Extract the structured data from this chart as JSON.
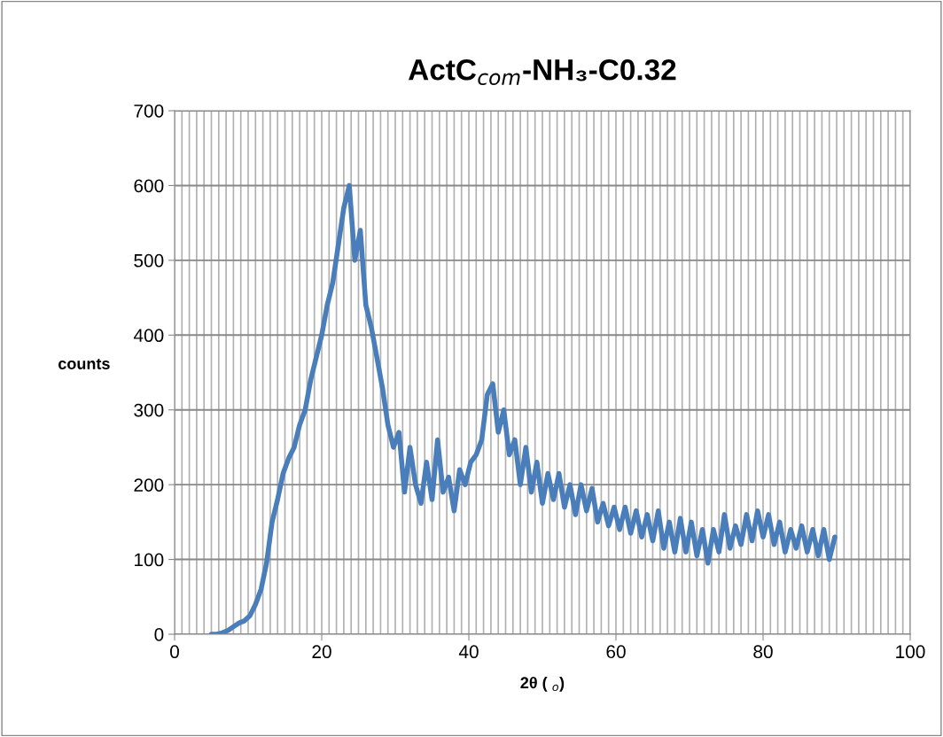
{
  "chart_data": {
    "type": "line",
    "title": "ActC$_{com}$-NH₃-C0.32",
    "xlabel": "2θ ( $_{o}$)",
    "ylabel": "counts",
    "xlim": [
      0,
      100
    ],
    "xticks": [
      0,
      20,
      40,
      60,
      80,
      100
    ],
    "ylim": [
      0,
      700
    ],
    "yticks": [
      0,
      100,
      200,
      300,
      400,
      500,
      600,
      700
    ],
    "grid": true,
    "legend": false,
    "series": [
      {
        "color": "#4a7ebb",
        "x": [
          5,
          5.75,
          6.5,
          7.25,
          8,
          8.75,
          9.5,
          10.25,
          11,
          11.75,
          12.5,
          13.25,
          14,
          14.75,
          15.5,
          16.25,
          17,
          17.75,
          18.5,
          19.25,
          20,
          20.75,
          21.5,
          22.25,
          23,
          23.75,
          24.5,
          25.25,
          26,
          26.75,
          27.5,
          28.25,
          29,
          29.75,
          30.5,
          31.25,
          32,
          32.75,
          33.5,
          34.25,
          35,
          35.75,
          36.5,
          37.25,
          38,
          38.75,
          39.5,
          40.25,
          41,
          41.75,
          42.5,
          43.25,
          44,
          44.75,
          45.5,
          46.25,
          47,
          47.75,
          48.5,
          49.25,
          50,
          50.75,
          51.5,
          52.25,
          53,
          53.75,
          54.5,
          55.25,
          56,
          56.75,
          57.5,
          58.25,
          59,
          59.75,
          60.5,
          61.25,
          62,
          62.75,
          63.5,
          64.25,
          65,
          65.75,
          66.5,
          67.25,
          68,
          68.75,
          69.5,
          70.25,
          71,
          71.75,
          72.5,
          73.25,
          74,
          74.75,
          75.5,
          76.25,
          77,
          77.75,
          78.5,
          79.25,
          80,
          80.75,
          81.5,
          82.25,
          83,
          83.75,
          84.5,
          85.25,
          86,
          86.75,
          87.5,
          88.25,
          89,
          89.75
        ],
        "values": [
          0,
          0,
          2,
          5,
          10,
          15,
          18,
          25,
          40,
          60,
          95,
          150,
          180,
          215,
          235,
          250,
          280,
          300,
          340,
          370,
          400,
          440,
          470,
          520,
          570,
          600,
          500,
          540,
          440,
          410,
          370,
          330,
          280,
          250,
          270,
          190,
          250,
          200,
          175,
          230,
          180,
          260,
          190,
          210,
          165,
          220,
          200,
          230,
          240,
          260,
          320,
          335,
          270,
          300,
          240,
          260,
          200,
          250,
          190,
          230,
          175,
          215,
          180,
          215,
          170,
          200,
          160,
          200,
          165,
          195,
          150,
          175,
          145,
          170,
          140,
          170,
          135,
          165,
          130,
          160,
          125,
          165,
          115,
          150,
          110,
          155,
          110,
          150,
          105,
          140,
          95,
          140,
          110,
          160,
          115,
          145,
          120,
          160,
          125,
          165,
          130,
          160,
          120,
          150,
          110,
          140,
          115,
          145,
          110,
          140,
          105,
          140,
          100,
          130
        ]
      }
    ]
  }
}
